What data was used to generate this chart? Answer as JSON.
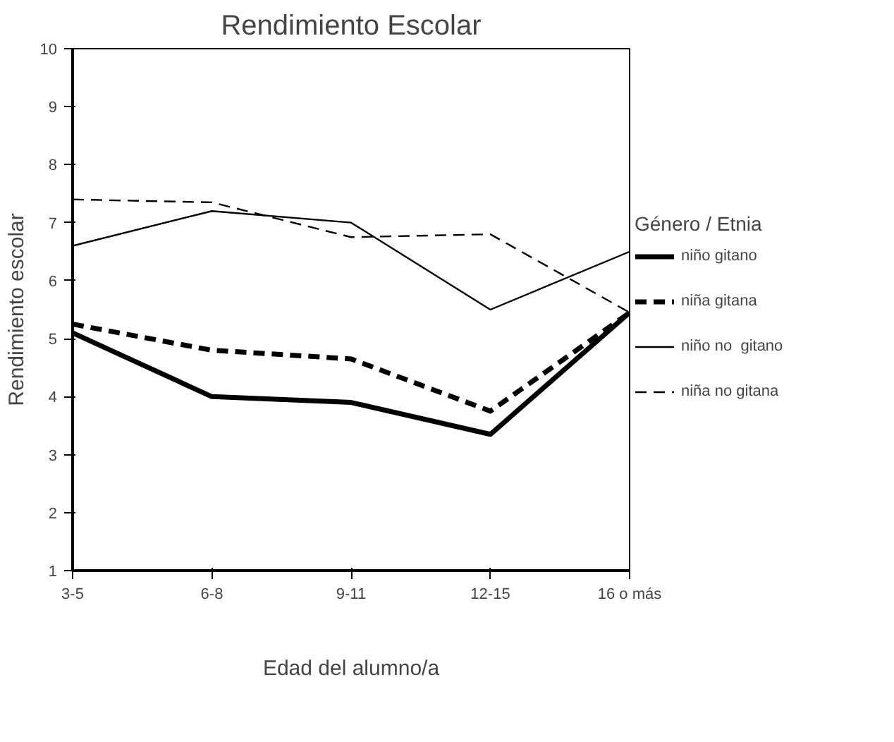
{
  "chart_data": {
    "type": "line",
    "title": "Rendimiento Escolar",
    "xlabel": "Edad del alumno/a",
    "ylabel": "Rendimiento escolar",
    "legend_title": "Género / Etnia",
    "categories": [
      "3-5",
      "6-8",
      "9-11",
      "12-15",
      "16 o más"
    ],
    "series": [
      {
        "name": "niño gitano",
        "color": "#000000",
        "line_style": "solid",
        "values": [
          5.1,
          4.0,
          3.9,
          3.35,
          5.45
        ]
      },
      {
        "name": "niña gitana",
        "color": "#000000",
        "line_style": "dashed",
        "values": [
          5.25,
          4.8,
          4.65,
          3.75,
          5.45
        ]
      },
      {
        "name": "niño no  gitano",
        "color": "#000000",
        "line_style": "solid",
        "values": [
          6.6,
          7.2,
          7.0,
          5.5,
          6.5
        ]
      },
      {
        "name": "niña no gitana",
        "color": "#000000",
        "line_style": "dashed",
        "values": [
          7.4,
          7.35,
          6.75,
          6.8,
          5.45
        ]
      }
    ],
    "ylim": [
      1,
      10
    ],
    "yticks": [
      1,
      2,
      3,
      4,
      5,
      6,
      7,
      8,
      9,
      10
    ],
    "grid": false,
    "legend": "right",
    "marker": "none"
  }
}
